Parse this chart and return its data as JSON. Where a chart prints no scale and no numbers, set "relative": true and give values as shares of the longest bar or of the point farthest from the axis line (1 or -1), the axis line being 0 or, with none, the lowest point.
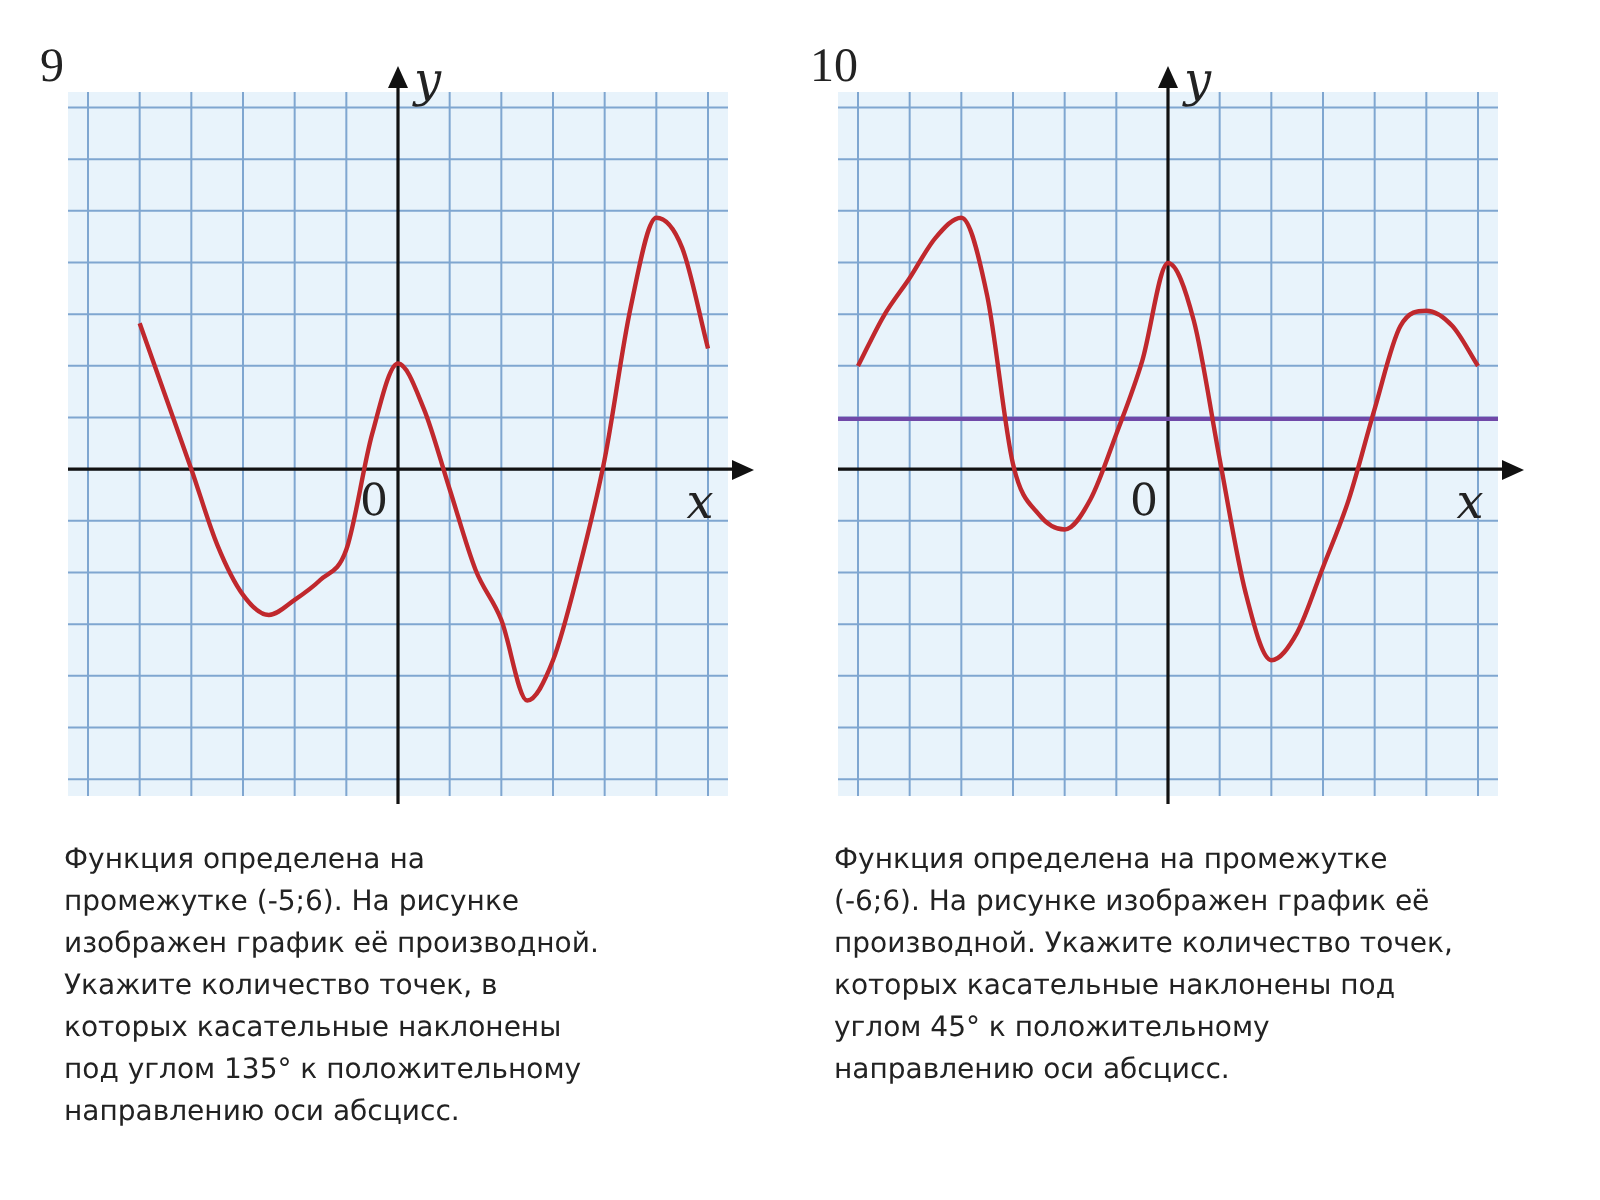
{
  "chart_data": [
    {
      "type": "line",
      "title": "9",
      "xlabel": "x",
      "ylabel": "y",
      "relative": true,
      "grid": true,
      "legend": false,
      "marker": "none",
      "categories": [
        null,
        null,
        null,
        null,
        null,
        null,
        null,
        null,
        null,
        null,
        null,
        null,
        null,
        null,
        null,
        null,
        null,
        null,
        null,
        null,
        null,
        null,
        null,
        null,
        null
      ],
      "series": [
        {
          "color": "#c0282d",
          "values": [
            null,
            null,
            0.58,
            0.29,
            0,
            -0.3,
            -0.5,
            -0.58,
            -0.52,
            -0.44,
            -0.32,
            0.14,
            0.42,
            0.24,
            -0.08,
            -0.4,
            -0.6,
            -0.92,
            -0.76,
            -0.4,
            0.04,
            0.64,
            1,
            0.88,
            0.48
          ]
        }
      ],
      "annotations": [
        "0",
        "Функция определена на\nпромежутке (-5;6). На рисунке\nизображен график её производной.\nУкажите количество точек, в\nкоторых касательные наклонены\nпод углом 135° к положительному\nнаправлению оси абсцисс."
      ]
    },
    {
      "type": "line",
      "title": "10",
      "xlabel": "x",
      "ylabel": "y",
      "relative": true,
      "grid": true,
      "legend": false,
      "marker": "none",
      "categories": [
        null,
        null,
        null,
        null,
        null,
        null,
        null,
        null,
        null,
        null,
        null,
        null,
        null,
        null,
        null,
        null,
        null,
        null,
        null,
        null,
        null,
        null,
        null,
        null,
        null
      ],
      "series": [
        {
          "color": "#c0282d",
          "values": [
            0.41,
            0.61,
            0.76,
            0.92,
            1,
            0.69,
            0.02,
            -0.18,
            -0.24,
            -0.12,
            0.14,
            0.43,
            0.82,
            0.59,
            0.04,
            -0.49,
            -0.76,
            -0.65,
            -0.39,
            -0.12,
            0.24,
            0.57,
            0.63,
            0.57,
            0.41
          ]
        }
      ],
      "ref_lines": [
        {
          "axis": "y",
          "value": 0.2,
          "color": "#7048a8"
        }
      ],
      "annotations": [
        "0",
        "Функция определена на промежутке\n (-6;6). На рисунке изображен график её\nпроизводной. Укажите количество точек,\nкоторых касательные наклонены под\nуглом  45° к положительному\nнаправлению оси абсцисс."
      ]
    }
  ]
}
